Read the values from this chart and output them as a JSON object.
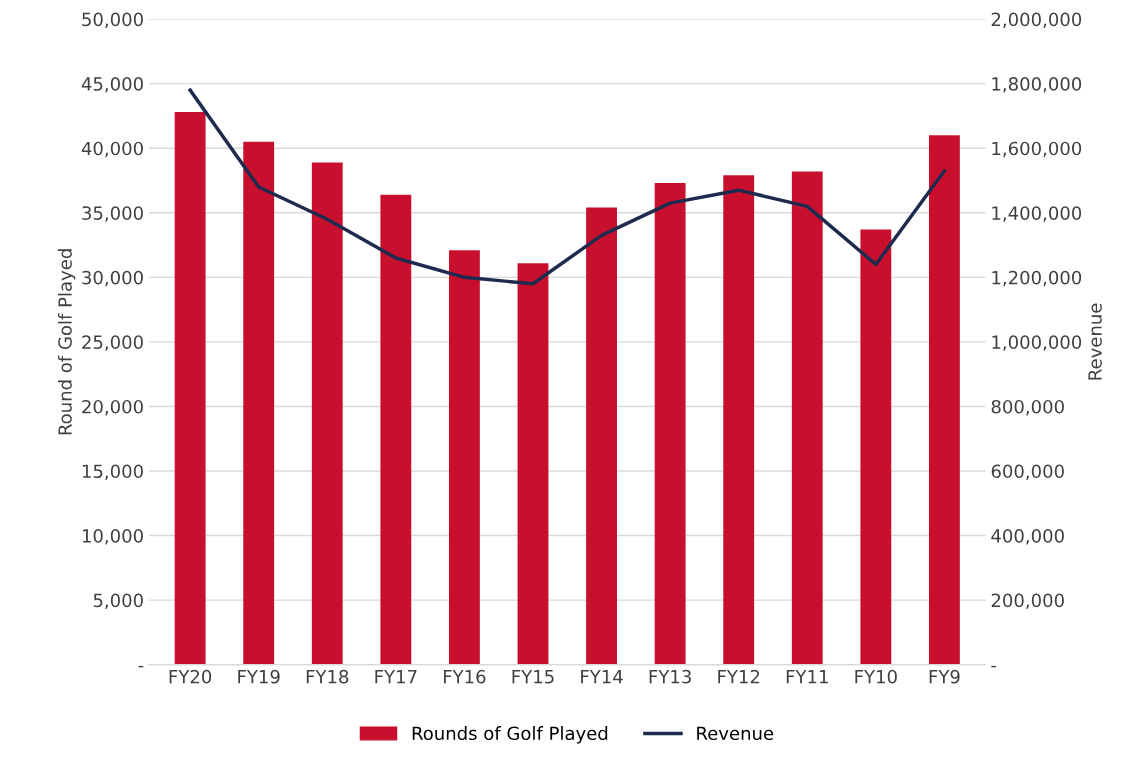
{
  "chart_data": {
    "type": "bar",
    "ylabel": "Round of Golf Played",
    "y2label": "Revenue",
    "categories": [
      "FY20",
      "FY19",
      "FY18",
      "FY17",
      "FY16",
      "FY15",
      "FY14",
      "FY13",
      "FY12",
      "FY11",
      "FY10",
      "FY9"
    ],
    "series": [
      {
        "name": "Rounds of Golf Played",
        "color": "#c8102e",
        "values": [
          42800,
          40500,
          38900,
          36400,
          32100,
          31100,
          35400,
          37300,
          37900,
          38200,
          33700,
          41000
        ]
      },
      {
        "name": "Revenue",
        "type": "line",
        "axis": "y2",
        "color": "#1f2a4f",
        "values": [
          1780000,
          1480000,
          1380000,
          1260000,
          1200000,
          1180000,
          1330000,
          1430000,
          1470000,
          1420000,
          1240000,
          1530000
        ]
      }
    ],
    "ylim": [
      0,
      50000
    ],
    "yticks": [
      {
        "value": 0,
        "label": "-"
      },
      {
        "value": 5000,
        "label": "5,000"
      },
      {
        "value": 10000,
        "label": "10,000"
      },
      {
        "value": 15000,
        "label": "15,000"
      },
      {
        "value": 20000,
        "label": "20,000"
      },
      {
        "value": 25000,
        "label": "25,000"
      },
      {
        "value": 30000,
        "label": "30,000"
      },
      {
        "value": 35000,
        "label": "35,000"
      },
      {
        "value": 40000,
        "label": "40,000"
      },
      {
        "value": 45000,
        "label": "45,000"
      },
      {
        "value": 50000,
        "label": "50,000"
      }
    ],
    "y2lim": [
      0,
      2000000
    ],
    "y2ticks": [
      {
        "value": 0,
        "label": "-"
      },
      {
        "value": 200000,
        "label": "200,000"
      },
      {
        "value": 400000,
        "label": "400,000"
      },
      {
        "value": 600000,
        "label": "600,000"
      },
      {
        "value": 800000,
        "label": "800,000"
      },
      {
        "value": 1000000,
        "label": "1,000,000"
      },
      {
        "value": 1200000,
        "label": "1,200,000"
      },
      {
        "value": 1400000,
        "label": "1,400,000"
      },
      {
        "value": 1600000,
        "label": "1,600,000"
      },
      {
        "value": 1800000,
        "label": "1,800,000"
      },
      {
        "value": 2000000,
        "label": "2,000,000"
      }
    ],
    "grid": "y",
    "legend": "bottom",
    "marker": "none",
    "line_style": "solid"
  }
}
